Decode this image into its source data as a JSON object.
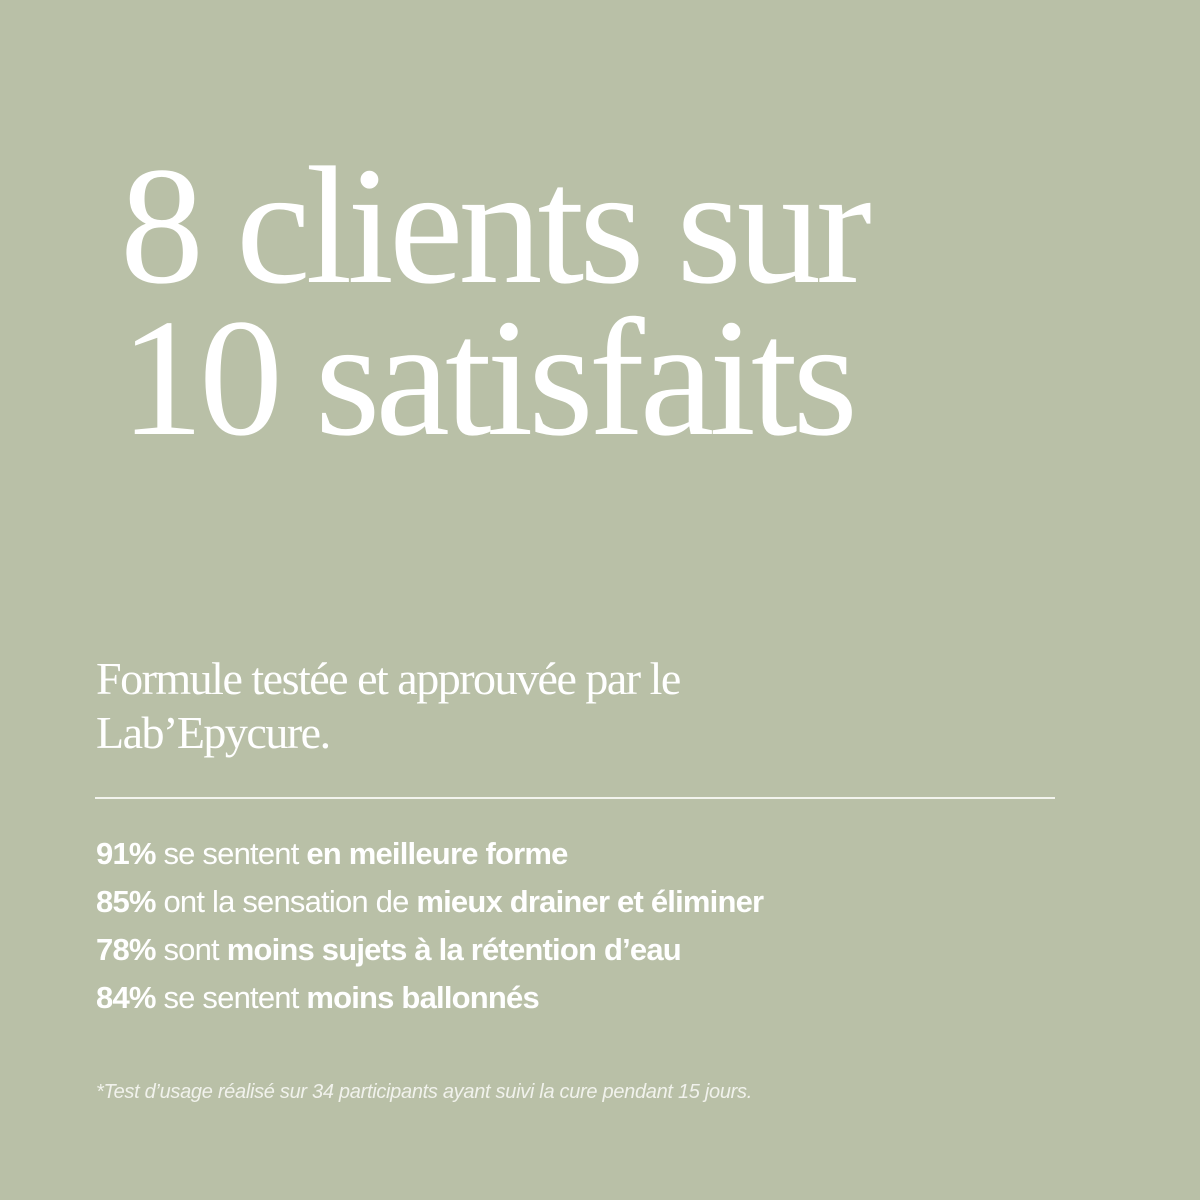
{
  "colors": {
    "background": "#b9c0a7",
    "text": "#ffffff"
  },
  "headline": {
    "line1": "8 clients sur",
    "line2": "10 satisfaits"
  },
  "subtitle": {
    "line1": "Formule testée et approuvée par le",
    "line2": "Lab’Epycure."
  },
  "stats": [
    {
      "percent": "91%",
      "text": " se sentent ",
      "highlight": "en meilleure forme"
    },
    {
      "percent": "85%",
      "text": " ont la sensation de ",
      "highlight": "mieux drainer et éliminer"
    },
    {
      "percent": "78%",
      "text": " sont ",
      "highlight": "moins sujets à la rétention d’eau"
    },
    {
      "percent": "84%",
      "text": " se sentent ",
      "highlight": "moins ballonnés"
    }
  ],
  "footnote": "*Test d’usage réalisé sur 34 participants ayant suivi la cure pendant 15 jours."
}
